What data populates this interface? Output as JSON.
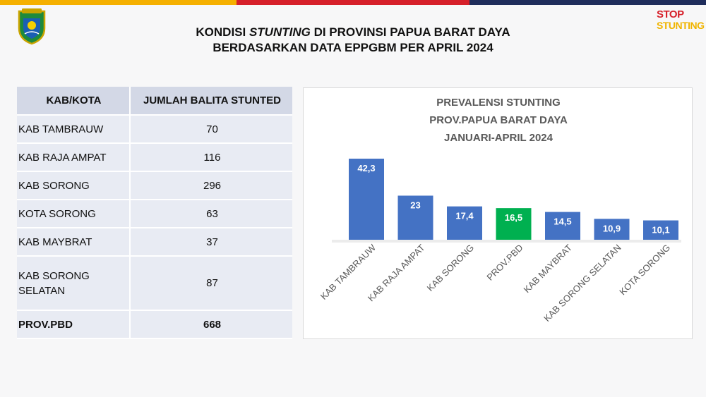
{
  "header": {
    "title_line1_pre": "KONDISI ",
    "title_line1_em": "STUNTING",
    "title_line1_post": " DI PROVINSI PAPUA BARAT DAYA",
    "title_line2": "BERDASARKAN DATA EPPGBM PER APRIL 2024",
    "logo_icon": "provincial-emblem-icon",
    "stop_logo_line1": "STOP",
    "stop_logo_line2": "STUNTING"
  },
  "colors": {
    "topbar": [
      "#f5b000",
      "#d6202a",
      "#1f2d5c"
    ],
    "bar_default": "#4472c4",
    "bar_highlight": "#00b050"
  },
  "table": {
    "headers": [
      "KAB/KOTA",
      "JUMLAH BALITA STUNTED"
    ],
    "rows": [
      {
        "name": "KAB TAMBRAUW",
        "value": "70"
      },
      {
        "name": "KAB RAJA AMPAT",
        "value": "116"
      },
      {
        "name": "KAB SORONG",
        "value": "296"
      },
      {
        "name": "KOTA SORONG",
        "value": "63"
      },
      {
        "name": "KAB MAYBRAT",
        "value": "37"
      },
      {
        "name": "KAB SORONG SELATAN",
        "value": "87"
      }
    ],
    "total": {
      "name": "PROV.PBD",
      "value": "668"
    }
  },
  "chart_data": {
    "type": "bar",
    "title": [
      "PREVALENSI STUNTING",
      "PROV.PAPUA BARAT DAYA",
      "JANUARI-APRIL 2024"
    ],
    "categories": [
      "KAB TAMBRAUW",
      "KAB RAJA AMPAT",
      "KAB SORONG",
      "PROV.PBD",
      "KAB MAYBRAT",
      "KAB SORONG SELATAN",
      "KOTA SORONG"
    ],
    "values": [
      42.3,
      23,
      17.4,
      16.5,
      14.5,
      10.9,
      10.1
    ],
    "value_labels": [
      "42,3",
      "23",
      "17,4",
      "16,5",
      "14,5",
      "10,9",
      "10,1"
    ],
    "highlight": "PROV.PBD",
    "ylim": [
      0,
      42.3
    ],
    "grid": false,
    "legend": "none"
  }
}
